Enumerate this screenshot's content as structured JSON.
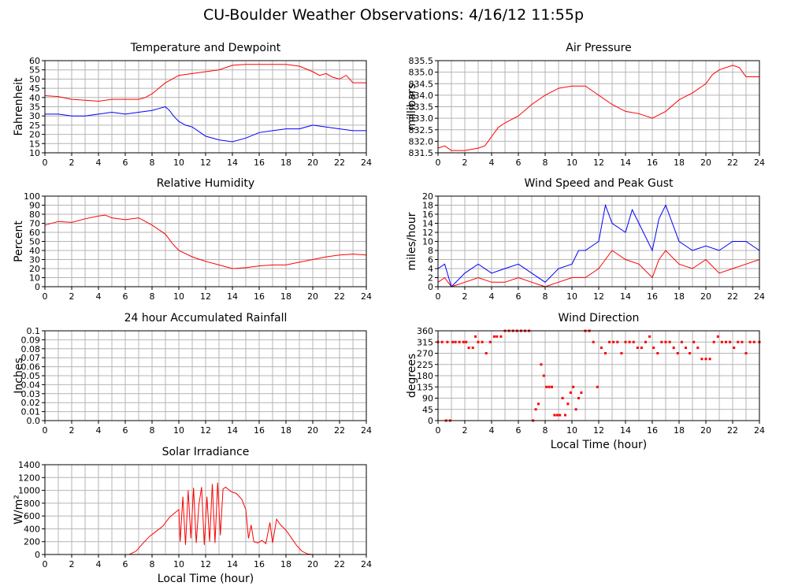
{
  "page": {
    "title": "CU-Boulder Weather Observations: 4/16/12 11:55p"
  },
  "colors": {
    "primary": "#ff0000",
    "secondary": "#0000ff",
    "grid": "#b4b4b4"
  },
  "chart_data": [
    {
      "id": "temperature",
      "type": "line",
      "title": "Temperature and Dewpoint",
      "ylabel": "Fahrenheit",
      "xlabel": "",
      "xlim": [
        0,
        24
      ],
      "ylim": [
        10,
        60
      ],
      "xticks": [
        0,
        2,
        4,
        6,
        8,
        10,
        12,
        14,
        16,
        18,
        20,
        22,
        24
      ],
      "yticks": [
        10,
        15,
        20,
        25,
        30,
        35,
        40,
        45,
        50,
        55,
        60
      ],
      "yticklabels": [
        "10",
        "15",
        "20",
        "25",
        "30",
        "35",
        "40",
        "45",
        "50",
        "55",
        "60"
      ],
      "grid": true,
      "series": [
        {
          "color": "#ff0000",
          "x": [
            0,
            1,
            2,
            3,
            4,
            5,
            6,
            7,
            7.5,
            8,
            8.5,
            9,
            9.5,
            10,
            11,
            12,
            13,
            14,
            15,
            16,
            17,
            18,
            19,
            20,
            20.5,
            21,
            21.5,
            22,
            22.5,
            23,
            24
          ],
          "y": [
            41,
            40.5,
            39,
            38.5,
            38,
            39,
            39,
            39,
            40,
            42,
            45,
            48,
            50,
            52,
            53,
            54,
            55,
            57.5,
            58,
            58,
            58,
            58,
            57,
            54,
            52,
            53,
            51,
            50,
            52,
            48,
            48
          ]
        },
        {
          "color": "#0000ff",
          "x": [
            0,
            1,
            2,
            3,
            4,
            5,
            6,
            7,
            8,
            8.5,
            9,
            9.3,
            9.6,
            10,
            10.5,
            11,
            12,
            13,
            14,
            15,
            16,
            17,
            18,
            19,
            20,
            21,
            22,
            23,
            24
          ],
          "y": [
            31,
            31,
            30,
            30,
            31,
            32,
            31,
            32,
            33,
            34,
            35,
            33,
            30,
            27,
            25,
            24,
            19,
            17,
            16,
            18,
            21,
            22,
            23,
            23,
            25,
            24,
            23,
            22,
            22
          ]
        }
      ]
    },
    {
      "id": "pressure",
      "type": "line",
      "title": "Air Pressure",
      "ylabel": "millibars",
      "xlabel": "",
      "xlim": [
        0,
        24
      ],
      "ylim": [
        831.5,
        835.5
      ],
      "xticks": [
        0,
        2,
        4,
        6,
        8,
        10,
        12,
        14,
        16,
        18,
        20,
        22,
        24
      ],
      "yticks": [
        831.5,
        832.0,
        832.5,
        833.0,
        833.5,
        834.0,
        834.5,
        835.0,
        835.5
      ],
      "yticklabels": [
        "831.5",
        "832.0",
        "832.5",
        "833.0",
        "833.5",
        "834.0",
        "834.5",
        "835.0",
        "835.5"
      ],
      "grid": true,
      "series": [
        {
          "color": "#ff0000",
          "x": [
            0,
            0.5,
            1,
            2,
            3,
            3.5,
            4,
            4.5,
            5,
            6,
            7,
            8,
            9,
            10,
            11,
            12,
            13,
            14,
            15,
            16,
            17,
            18,
            19,
            20,
            20.5,
            21,
            22,
            22.5,
            23,
            24
          ],
          "y": [
            831.7,
            831.8,
            831.6,
            831.6,
            831.7,
            831.8,
            832.2,
            832.6,
            832.8,
            833.1,
            833.6,
            834.0,
            834.3,
            834.4,
            834.4,
            834.0,
            833.6,
            833.3,
            833.2,
            833.0,
            833.3,
            833.8,
            834.1,
            834.5,
            834.9,
            835.1,
            835.3,
            835.2,
            834.8,
            834.8
          ]
        }
      ]
    },
    {
      "id": "humidity",
      "type": "line",
      "title": "Relative Humidity",
      "ylabel": "Percent",
      "xlabel": "",
      "xlim": [
        0,
        24
      ],
      "ylim": [
        0,
        100
      ],
      "xticks": [
        0,
        2,
        4,
        6,
        8,
        10,
        12,
        14,
        16,
        18,
        20,
        22,
        24
      ],
      "yticks": [
        0,
        10,
        20,
        30,
        40,
        50,
        60,
        70,
        80,
        90,
        100
      ],
      "yticklabels": [
        "0",
        "10",
        "20",
        "30",
        "40",
        "50",
        "60",
        "70",
        "80",
        "90",
        "100"
      ],
      "grid": true,
      "series": [
        {
          "color": "#ff0000",
          "x": [
            0,
            1,
            2,
            3,
            4,
            4.5,
            5,
            6,
            7,
            7.5,
            8,
            8.5,
            9,
            9.5,
            10,
            11,
            12,
            13,
            14,
            15,
            16,
            17,
            18,
            19,
            20,
            21,
            22,
            23,
            24
          ],
          "y": [
            68,
            72,
            71,
            75,
            78,
            79,
            76,
            74,
            76,
            72,
            68,
            63,
            58,
            48,
            40,
            33,
            28,
            24,
            20,
            21,
            23,
            24,
            24,
            27,
            30,
            33,
            35,
            36,
            35
          ]
        }
      ]
    },
    {
      "id": "wind-speed",
      "type": "line",
      "title": "Wind Speed and Peak Gust",
      "ylabel": "miles/hour",
      "xlabel": "",
      "xlim": [
        0,
        24
      ],
      "ylim": [
        0,
        20
      ],
      "xticks": [
        0,
        2,
        4,
        6,
        8,
        10,
        12,
        14,
        16,
        18,
        20,
        22,
        24
      ],
      "yticks": [
        0,
        2,
        4,
        6,
        8,
        10,
        12,
        14,
        16,
        18,
        20
      ],
      "yticklabels": [
        "0",
        "2",
        "4",
        "6",
        "8",
        "10",
        "12",
        "14",
        "16",
        "18",
        "20"
      ],
      "grid": true,
      "series": [
        {
          "color": "#ff0000",
          "x": [
            0,
            0.5,
            1,
            2,
            3,
            4,
            5,
            6,
            7,
            8,
            9,
            10,
            11,
            12,
            12.5,
            13,
            14,
            15,
            16,
            16.5,
            17,
            18,
            19,
            20,
            21,
            22,
            23,
            24
          ],
          "y": [
            1,
            2,
            0,
            1,
            2,
            1,
            1,
            2,
            1,
            0,
            1,
            2,
            2,
            4,
            6,
            8,
            6,
            5,
            2,
            6,
            8,
            5,
            4,
            6,
            3,
            4,
            5,
            6
          ]
        },
        {
          "color": "#0000ff",
          "x": [
            0,
            0.5,
            1,
            2,
            3,
            4,
            5,
            6,
            7,
            8,
            9,
            10,
            10.5,
            11,
            12,
            12.5,
            13,
            14,
            14.5,
            15,
            16,
            16.5,
            17,
            18,
            19,
            20,
            21,
            22,
            23,
            24
          ],
          "y": [
            4,
            5,
            0,
            3,
            5,
            3,
            4,
            5,
            3,
            1,
            4,
            5,
            8,
            8,
            10,
            18,
            14,
            12,
            17,
            14,
            8,
            15,
            18,
            10,
            8,
            9,
            8,
            10,
            10,
            8
          ]
        }
      ]
    },
    {
      "id": "rainfall",
      "type": "line",
      "title": "24 hour Accumulated Rainfall",
      "ylabel": "Inches",
      "xlabel": "",
      "xlim": [
        0,
        24
      ],
      "ylim": [
        0,
        0.1
      ],
      "xticks": [
        0,
        2,
        4,
        6,
        8,
        10,
        12,
        14,
        16,
        18,
        20,
        22,
        24
      ],
      "yticks": [
        0,
        0.01,
        0.02,
        0.03,
        0.04,
        0.05,
        0.06,
        0.07,
        0.08,
        0.09,
        0.1
      ],
      "yticklabels": [
        "0.0",
        "0.01",
        "0.02",
        "0.03",
        "0.04",
        "0.05",
        "0.06",
        "0.07",
        "0.08",
        "0.09",
        "0.1"
      ],
      "grid": true,
      "series": [
        {
          "color": "#ff0000",
          "x": [
            0,
            24
          ],
          "y": [
            0,
            0
          ]
        }
      ]
    },
    {
      "id": "wind-direction",
      "type": "scatter",
      "title": "Wind Direction",
      "ylabel": "degrees",
      "xlabel": "Local Time (hour)",
      "xlim": [
        0,
        24
      ],
      "ylim": [
        0,
        360
      ],
      "xticks": [
        0,
        2,
        4,
        6,
        8,
        10,
        12,
        14,
        16,
        18,
        20,
        22,
        24
      ],
      "yticks": [
        0,
        45,
        90,
        135,
        180,
        225,
        270,
        315,
        360
      ],
      "yticklabels": [
        "0",
        "45",
        "90",
        "135",
        "180",
        "225",
        "270",
        "315",
        "360"
      ],
      "grid": true,
      "series": [
        {
          "color": "#ff0000",
          "x": [
            0,
            0.3,
            0.6,
            0.7,
            0.9,
            1.1,
            1.3,
            1.6,
            1.9,
            2.1,
            2.3,
            2.6,
            2.8,
            3.0,
            3.3,
            3.6,
            3.9,
            4.2,
            4.4,
            4.7,
            5.0,
            5.3,
            5.6,
            5.9,
            6.2,
            6.5,
            6.8,
            7.1,
            7.3,
            7.5,
            7.7,
            7.9,
            8.1,
            8.3,
            8.5,
            8.7,
            8.9,
            9.1,
            9.3,
            9.5,
            9.7,
            9.9,
            10.1,
            10.3,
            10.5,
            10.7,
            11.0,
            11.3,
            11.6,
            11.9,
            12.2,
            12.5,
            12.8,
            13.1,
            13.4,
            13.7,
            14.0,
            14.3,
            14.6,
            14.9,
            15.2,
            15.5,
            15.8,
            16.1,
            16.4,
            16.7,
            17.0,
            17.3,
            17.6,
            17.9,
            18.2,
            18.5,
            18.8,
            19.1,
            19.4,
            19.7,
            20.0,
            20.3,
            20.6,
            20.9,
            21.2,
            21.5,
            21.8,
            22.1,
            22.4,
            22.7,
            23.0,
            23.3,
            23.6,
            24.0
          ],
          "y": [
            315,
            315,
            0,
            315,
            0,
            315,
            315,
            315,
            315,
            315,
            292,
            292,
            337,
            315,
            315,
            270,
            315,
            337,
            337,
            337,
            360,
            360,
            360,
            360,
            360,
            360,
            360,
            0,
            45,
            67,
            225,
            180,
            135,
            135,
            135,
            22,
            22,
            22,
            90,
            22,
            67,
            112,
            135,
            45,
            90,
            112,
            360,
            360,
            315,
            135,
            292,
            270,
            315,
            315,
            315,
            270,
            315,
            315,
            315,
            292,
            292,
            315,
            337,
            292,
            270,
            315,
            315,
            315,
            292,
            270,
            315,
            292,
            270,
            315,
            292,
            247,
            247,
            247,
            315,
            337,
            315,
            315,
            315,
            292,
            315,
            315,
            270,
            315,
            315,
            315
          ]
        }
      ]
    },
    {
      "id": "solar",
      "type": "line",
      "title": "Solar Irradiance",
      "ylabel": "W/m²",
      "xlabel": "Local Time (hour)",
      "xlim": [
        0,
        24
      ],
      "ylim": [
        0,
        1400
      ],
      "xticks": [
        0,
        2,
        4,
        6,
        8,
        10,
        12,
        14,
        16,
        18,
        20,
        22,
        24
      ],
      "yticks": [
        0,
        200,
        400,
        600,
        800,
        1000,
        1200,
        1400
      ],
      "yticklabels": [
        "0",
        "200",
        "400",
        "600",
        "800",
        "1000",
        "1200",
        "1400"
      ],
      "grid": true,
      "series": [
        {
          "color": "#ff0000",
          "x": [
            0,
            6.3,
            6.8,
            7.3,
            7.8,
            8.3,
            8.8,
            9.3,
            9.7,
            10.0,
            10.1,
            10.3,
            10.5,
            10.7,
            10.9,
            11.1,
            11.3,
            11.5,
            11.7,
            11.9,
            12.1,
            12.3,
            12.5,
            12.7,
            12.9,
            13.1,
            13.3,
            13.5,
            13.9,
            14.3,
            14.7,
            15.0,
            15.2,
            15.4,
            15.6,
            15.9,
            16.2,
            16.5,
            16.8,
            17.0,
            17.3,
            17.6,
            18.0,
            18.4,
            18.8,
            19.2,
            19.6,
            20.0,
            24
          ],
          "y": [
            0,
            0,
            50,
            170,
            280,
            360,
            440,
            580,
            650,
            700,
            200,
            900,
            150,
            1000,
            250,
            1040,
            180,
            780,
            1050,
            150,
            900,
            200,
            1100,
            180,
            1120,
            300,
            1020,
            1050,
            980,
            950,
            860,
            700,
            250,
            460,
            200,
            180,
            220,
            170,
            500,
            180,
            550,
            460,
            380,
            260,
            140,
            50,
            10,
            0,
            0
          ]
        }
      ]
    }
  ]
}
